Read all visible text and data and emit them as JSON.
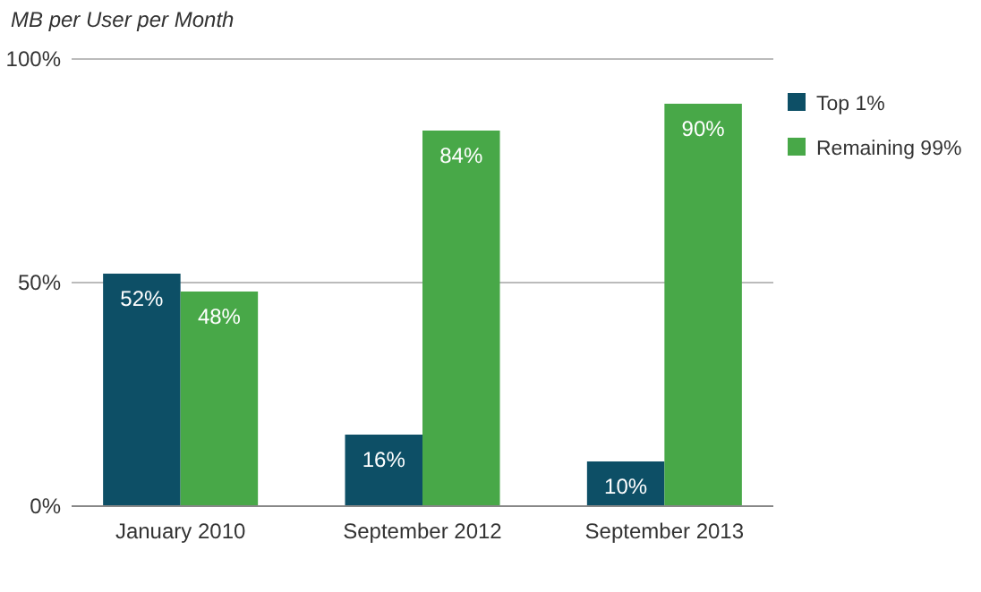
{
  "chart_data": {
    "type": "bar",
    "title": "MB per User per Month",
    "categories": [
      "January 2010",
      "September 2012",
      "September 2013"
    ],
    "series": [
      {
        "name": "Top 1%",
        "color": "#0d4f66",
        "values": [
          52,
          16,
          10
        ],
        "value_labels": [
          "52%",
          "16%",
          "10%"
        ]
      },
      {
        "name": "Remaining 99%",
        "color": "#48a848",
        "values": [
          48,
          84,
          90
        ],
        "value_labels": [
          "48%",
          "84%",
          "90%"
        ]
      }
    ],
    "ylim": [
      0,
      100
    ],
    "yticks": [
      {
        "value": 0,
        "label": "0%"
      },
      {
        "value": 50,
        "label": "50%"
      },
      {
        "value": 100,
        "label": "100%"
      }
    ],
    "grid": "y",
    "legend": "right"
  }
}
